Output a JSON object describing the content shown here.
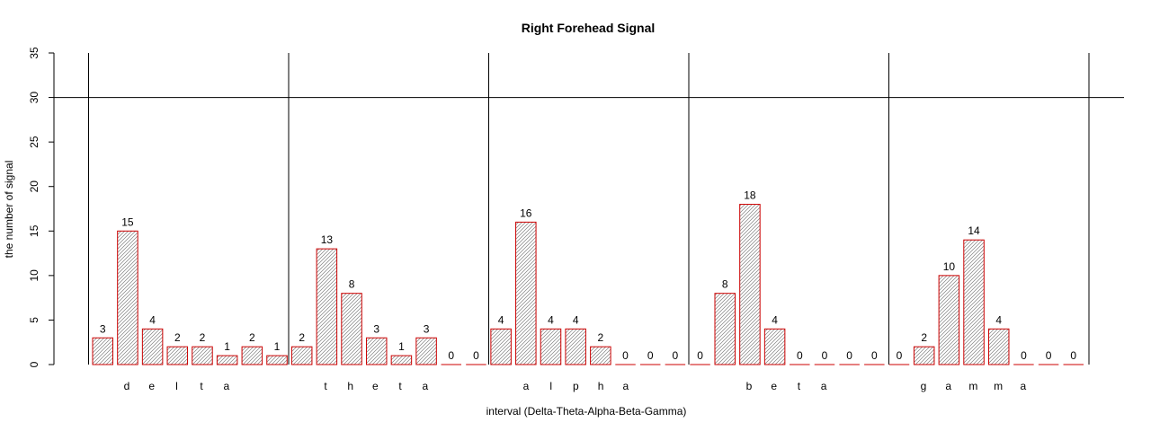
{
  "chart_data": {
    "type": "bar",
    "title": "Right Forehead Signal",
    "xlabel": "interval (Delta-Theta-Alpha-Beta-Gamma)",
    "ylabel": "the number of signal",
    "ylim": [
      0,
      35
    ],
    "yticks": [
      0,
      5,
      10,
      15,
      20,
      25,
      30,
      35
    ],
    "reference_line_y": 30,
    "bar_border_color": "#cc0000",
    "hatch_color": "#808080",
    "groups": [
      {
        "name": "delta",
        "letters": [
          "d",
          "e",
          "l",
          "t",
          "a"
        ],
        "values": [
          3,
          15,
          4,
          2,
          2,
          1,
          2,
          1
        ]
      },
      {
        "name": "theta",
        "letters": [
          "t",
          "h",
          "e",
          "t",
          "a"
        ],
        "values": [
          2,
          13,
          8,
          3,
          1,
          3,
          0,
          0
        ]
      },
      {
        "name": "alpha",
        "letters": [
          "a",
          "l",
          "p",
          "h",
          "a"
        ],
        "values": [
          4,
          16,
          4,
          4,
          2,
          0,
          0,
          0
        ]
      },
      {
        "name": "beta",
        "letters": [
          "b",
          "e",
          "t",
          "a"
        ],
        "values": [
          0,
          8,
          18,
          4,
          0,
          0,
          0,
          0
        ]
      },
      {
        "name": "gamma",
        "letters": [
          "g",
          "a",
          "m",
          "m",
          "a"
        ],
        "values": [
          0,
          2,
          10,
          14,
          4,
          0,
          0,
          0
        ]
      }
    ]
  }
}
